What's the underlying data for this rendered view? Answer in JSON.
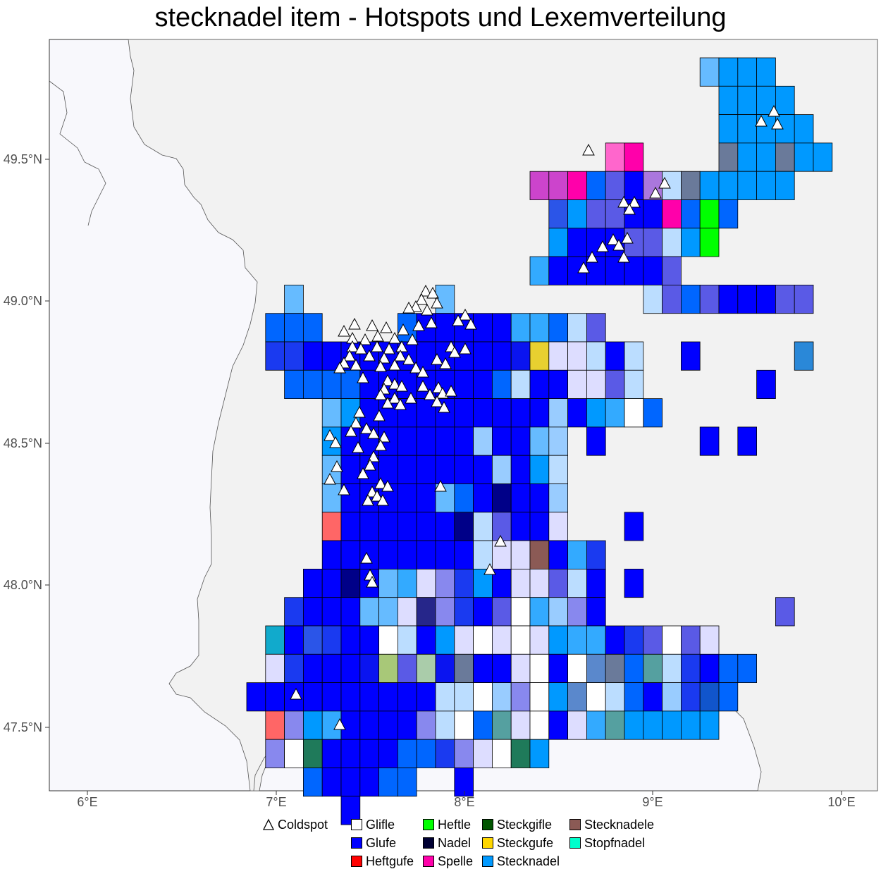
{
  "title": "stecknadel item - Hotspots und Lexemverteilung",
  "axes": {
    "x_ticks": [
      "6°E",
      "7°E",
      "8°E",
      "9°E",
      "10°E"
    ],
    "y_ticks": [
      "49.5°N",
      "49.0°N",
      "48.5°N",
      "48.0°N",
      "47.5°N"
    ]
  },
  "legend": {
    "items": [
      {
        "label": "Coldspot",
        "shape": "triangle"
      },
      {
        "label": "Glifle",
        "color": "#ffffff"
      },
      {
        "label": "Glufe",
        "color": "#0000ff"
      },
      {
        "label": "Heftgufe",
        "color": "#ff0000"
      },
      {
        "label": "Heftle",
        "color": "#00ff00"
      },
      {
        "label": "Nadel",
        "color": "#000033"
      },
      {
        "label": "Spelle",
        "color": "#ff00aa"
      },
      {
        "label": "Steckgifle",
        "color": "#005500"
      },
      {
        "label": "Steckgufe",
        "color": "#ffd700"
      },
      {
        "label": "Stecknadel",
        "color": "#0099ff"
      },
      {
        "label": "Stecknadele",
        "color": "#8b5a55"
      },
      {
        "label": "Stopfnadel",
        "color": "#00ffcc"
      }
    ]
  },
  "colors": {
    "panel_background": "#f8f8fc",
    "outside_region": "#f2f2f2",
    "border_line": "#555555",
    "coldspot_fill": "#ffffff",
    "coldspot_stroke": "#000000"
  }
}
